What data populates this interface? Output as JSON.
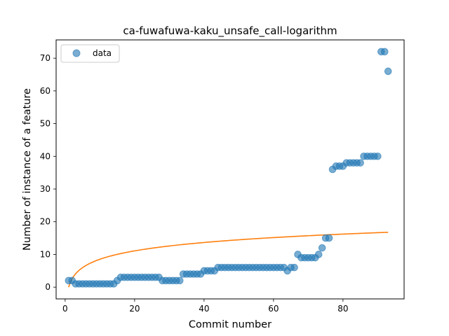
{
  "chart_data": {
    "type": "scatter",
    "title": "ca-fuwafuwa-kaku_unsafe_call-logarithm",
    "xlabel": "Commit number",
    "ylabel": "Number of instance of a feature",
    "xlim": [
      -2.6,
      97.6
    ],
    "ylim": [
      -3.6,
      75.6
    ],
    "xticks": [
      0,
      20,
      40,
      60,
      80
    ],
    "yticks": [
      0,
      10,
      20,
      30,
      40,
      50,
      60,
      70
    ],
    "grid": false,
    "legend": {
      "placement": "top-left",
      "entries": [
        "data"
      ]
    },
    "series": [
      {
        "name": "data",
        "kind": "scatter",
        "color": "#1f77b4",
        "x": [
          1,
          2,
          3,
          4,
          5,
          6,
          7,
          8,
          9,
          10,
          11,
          12,
          13,
          14,
          15,
          16,
          17,
          18,
          19,
          20,
          21,
          22,
          23,
          24,
          25,
          26,
          27,
          28,
          29,
          30,
          31,
          32,
          33,
          34,
          35,
          36,
          37,
          38,
          39,
          40,
          41,
          42,
          43,
          44,
          45,
          46,
          47,
          48,
          49,
          50,
          51,
          52,
          53,
          54,
          55,
          56,
          57,
          58,
          59,
          60,
          61,
          62,
          63,
          64,
          65,
          66,
          67,
          68,
          69,
          70,
          71,
          72,
          73,
          74,
          75,
          76,
          77,
          78,
          79,
          80,
          81,
          82,
          83,
          84,
          85,
          86,
          87,
          88,
          89,
          90,
          91,
          92,
          93
        ],
        "y": [
          2,
          2,
          1,
          1,
          1,
          1,
          1,
          1,
          1,
          1,
          1,
          1,
          1,
          1,
          2,
          3,
          3,
          3,
          3,
          3,
          3,
          3,
          3,
          3,
          3,
          3,
          3,
          2,
          2,
          2,
          2,
          2,
          2,
          4,
          4,
          4,
          4,
          4,
          4,
          5,
          5,
          5,
          5,
          6,
          6,
          6,
          6,
          6,
          6,
          6,
          6,
          6,
          6,
          6,
          6,
          6,
          6,
          6,
          6,
          6,
          6,
          6,
          6,
          5,
          6,
          6,
          10,
          9,
          9,
          9,
          9,
          9,
          10,
          12,
          15,
          15,
          36,
          37,
          37,
          37,
          38,
          38,
          38,
          38,
          38,
          40,
          40,
          40,
          40,
          40,
          72,
          72,
          66
        ]
      },
      {
        "name": "",
        "kind": "line",
        "color": "#ff7f0e",
        "formula": "y = 3.7 * ln(x)",
        "x_range": [
          1,
          93
        ]
      }
    ]
  }
}
